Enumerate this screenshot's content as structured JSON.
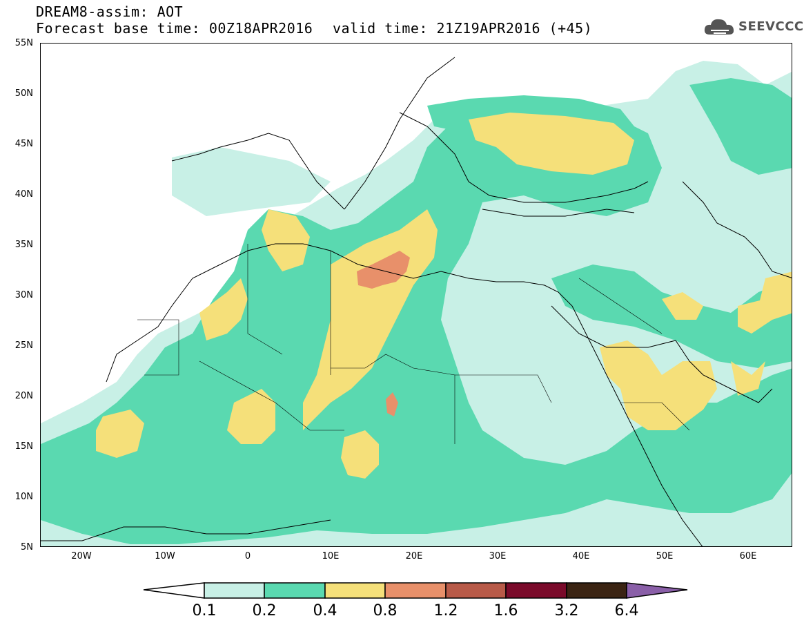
{
  "header": {
    "line1": "DREAM8-assim: AOT",
    "line2": "Forecast base time: 00Z18APR2016",
    "valid": "valid time: 21Z19APR2016 (+45)",
    "logo_text": "SEEVCCC"
  },
  "map": {
    "lat_labels": [
      "55N",
      "50N",
      "45N",
      "40N",
      "35N",
      "30N",
      "25N",
      "20N",
      "15N",
      "10N",
      "5N"
    ],
    "lon_labels": [
      "20W",
      "10W",
      "0",
      "10E",
      "20E",
      "30E",
      "40E",
      "50E",
      "60E"
    ],
    "lat_range": [
      5,
      55
    ],
    "lon_range": [
      -25,
      65
    ],
    "field": "Aerosol Optical Thickness"
  },
  "colorbar": {
    "labels": [
      "0.1",
      "0.2",
      "0.4",
      "0.8",
      "1.2",
      "1.6",
      "3.2",
      "6.4"
    ],
    "colors": [
      "#ffffff",
      "#c8f0e6",
      "#5ad9b0",
      "#f5e07a",
      "#e8906a",
      "#b85a48",
      "#7a0a2a",
      "#3b2413",
      "#8a5fa8"
    ]
  }
}
